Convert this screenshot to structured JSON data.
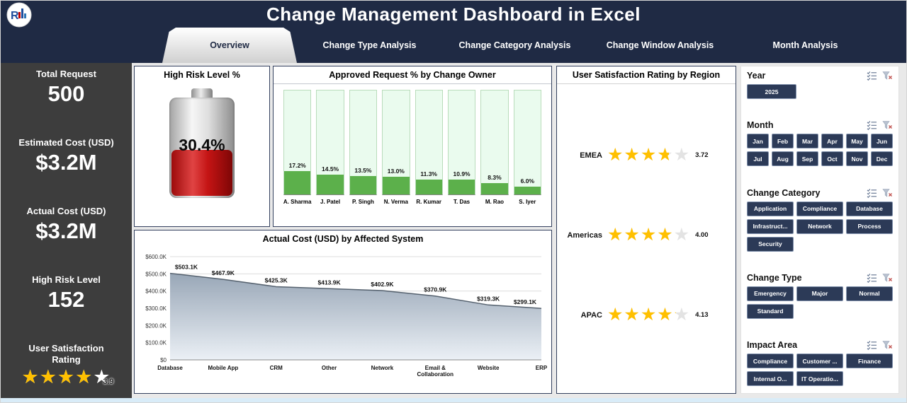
{
  "header": {
    "title": "Change Management Dashboard in Excel"
  },
  "tabs": [
    {
      "label": "Overview",
      "active": true
    },
    {
      "label": "Change Type Analysis",
      "active": false
    },
    {
      "label": "Change Category Analysis",
      "active": false
    },
    {
      "label": "Change Window Analysis",
      "active": false
    },
    {
      "label": "Month Analysis",
      "active": false
    }
  ],
  "sidebar": {
    "kpis": [
      {
        "label": "Total Request",
        "value": "500"
      },
      {
        "label": "Estimated Cost (USD)",
        "value": "$3.2M"
      },
      {
        "label": "Actual Cost (USD)",
        "value": "$3.2M"
      },
      {
        "label": "High Risk Level",
        "value": "152"
      }
    ],
    "rating": {
      "label": "User Satisfaction Rating",
      "value": 3.9,
      "display": "3.9",
      "max": 5
    }
  },
  "chart_data": [
    {
      "type": "gauge",
      "title": "High Risk Level %",
      "value": 30.4,
      "display": "30.4%"
    },
    {
      "type": "bar",
      "title": "Approved Request % by Change Owner",
      "categories": [
        "A. Sharma",
        "J. Patel",
        "P. Singh",
        "N. Verma",
        "R. Kumar",
        "T. Das",
        "M. Rao",
        "S. Iyer"
      ],
      "values": [
        17.2,
        14.5,
        13.5,
        13.0,
        11.3,
        10.9,
        8.3,
        6.0
      ],
      "unit": "%",
      "ylim": [
        0,
        100
      ],
      "grid": false,
      "legend": "none"
    },
    {
      "type": "area",
      "title": "Actual Cost (USD) by Affected System",
      "categories": [
        "Database",
        "Mobile App",
        "CRM",
        "Other",
        "Network",
        "Email &\nCollaboration",
        "Website",
        "ERP"
      ],
      "values": [
        503100,
        467900,
        425300,
        413900,
        402900,
        370900,
        319300,
        299100
      ],
      "labels": [
        "$503.1K",
        "$467.9K",
        "$425.3K",
        "$413.9K",
        "$402.9K",
        "$370.9K",
        "$319.3K",
        "$299.1K"
      ],
      "ylim": [
        0,
        600000
      ],
      "yticks": [
        "$0",
        "$100.0K",
        "$200.0K",
        "$300.0K",
        "$400.0K",
        "$500.0K",
        "$600.0K"
      ],
      "grid": true,
      "legend": "none"
    },
    {
      "type": "rating",
      "title": "User Satisfaction Rating by Region",
      "categories": [
        "EMEA",
        "Americas",
        "APAC"
      ],
      "values": [
        3.72,
        4.0,
        4.13
      ],
      "display": [
        "3.72",
        "4.00",
        "4.13"
      ],
      "max": 5
    }
  ],
  "slicers": [
    {
      "title": "Year",
      "columns": 1,
      "items": [
        "2025"
      ]
    },
    {
      "title": "Month",
      "columns": 6,
      "items": [
        "Jan",
        "Feb",
        "Mar",
        "Apr",
        "May",
        "Jun",
        "Jul",
        "Aug",
        "Sep",
        "Oct",
        "Nov",
        "Dec"
      ]
    },
    {
      "title": "Change Category",
      "columns": 3,
      "items": [
        "Application",
        "Compliance",
        "Database",
        "Infrastruct...",
        "Network",
        "Process",
        "Security"
      ]
    },
    {
      "title": "Change Type",
      "columns": 3,
      "items": [
        "Emergency",
        "Major",
        "Normal",
        "Standard"
      ]
    },
    {
      "title": "Impact Area",
      "columns": 3,
      "items": [
        "Compliance",
        "Customer ...",
        "Finance",
        "Internal O...",
        "IT Operatio..."
      ]
    }
  ],
  "colors": {
    "navy": "#1f2a44",
    "sidebar_gray": "#3d3d3d",
    "slicer_button": "#2c3a57",
    "star_gold": "#ffc000",
    "bar_green": "#5cb04b",
    "battery_red": "#c41414"
  }
}
